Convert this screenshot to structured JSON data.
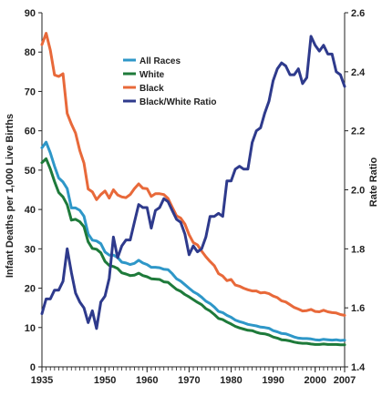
{
  "chart_data": {
    "type": "line",
    "title": "",
    "xlabel": "",
    "ylabel": "Infant Deaths per 1,000 Live Births",
    "y2label": "Rate Ratio",
    "xlim": [
      1935,
      2007
    ],
    "ylim": [
      0,
      90
    ],
    "y2lim": [
      1.4,
      2.6
    ],
    "x_ticks": [
      1935,
      1950,
      1960,
      1970,
      1980,
      1990,
      2000,
      2007
    ],
    "y_ticks": [
      0,
      10,
      20,
      30,
      40,
      50,
      60,
      70,
      80,
      90
    ],
    "y2_ticks": [
      1.4,
      1.6,
      1.8,
      2.0,
      2.2,
      2.4,
      2.6
    ],
    "grid": false,
    "legend_position": "top-center",
    "series": [
      {
        "name": "All Races",
        "axis": "left",
        "color": "#2e97c8",
        "x": [
          1935,
          1936,
          1937,
          1938,
          1939,
          1940,
          1941,
          1942,
          1943,
          1944,
          1945,
          1946,
          1947,
          1948,
          1949,
          1950,
          1951,
          1952,
          1953,
          1954,
          1955,
          1956,
          1957,
          1958,
          1959,
          1960,
          1961,
          1962,
          1963,
          1964,
          1965,
          1966,
          1967,
          1968,
          1969,
          1970,
          1971,
          1972,
          1973,
          1974,
          1975,
          1976,
          1977,
          1978,
          1979,
          1980,
          1981,
          1982,
          1983,
          1984,
          1985,
          1986,
          1987,
          1988,
          1989,
          1990,
          1991,
          1992,
          1993,
          1994,
          1995,
          1996,
          1997,
          1998,
          1999,
          2000,
          2001,
          2002,
          2003,
          2004,
          2005,
          2006,
          2007
        ],
        "values": [
          55.7,
          57.1,
          54.4,
          51.0,
          48.0,
          47.0,
          45.3,
          40.4,
          40.4,
          39.8,
          38.3,
          33.8,
          32.2,
          32.0,
          31.3,
          29.2,
          28.4,
          28.4,
          27.8,
          26.6,
          26.4,
          26.0,
          26.3,
          27.1,
          26.4,
          26.0,
          25.3,
          25.3,
          25.2,
          24.8,
          24.7,
          23.7,
          22.4,
          21.8,
          20.9,
          20.0,
          19.1,
          18.5,
          17.7,
          16.7,
          16.1,
          15.2,
          14.1,
          13.8,
          13.1,
          12.6,
          11.9,
          11.5,
          11.2,
          10.8,
          10.6,
          10.4,
          10.1,
          10.0,
          9.8,
          9.2,
          8.9,
          8.5,
          8.4,
          8.0,
          7.6,
          7.3,
          7.2,
          7.2,
          7.1,
          6.9,
          6.8,
          7.0,
          6.9,
          6.8,
          6.9,
          6.7,
          6.8
        ]
      },
      {
        "name": "White",
        "axis": "left",
        "color": "#1e7a3a",
        "x": [
          1935,
          1936,
          1937,
          1938,
          1939,
          1940,
          1941,
          1942,
          1943,
          1944,
          1945,
          1946,
          1947,
          1948,
          1949,
          1950,
          1951,
          1952,
          1953,
          1954,
          1955,
          1956,
          1957,
          1958,
          1959,
          1960,
          1961,
          1962,
          1963,
          1964,
          1965,
          1966,
          1967,
          1968,
          1969,
          1970,
          1971,
          1972,
          1973,
          1974,
          1975,
          1976,
          1977,
          1978,
          1979,
          1980,
          1981,
          1982,
          1983,
          1984,
          1985,
          1986,
          1987,
          1988,
          1989,
          1990,
          1991,
          1992,
          1993,
          1994,
          1995,
          1996,
          1997,
          1998,
          1999,
          2000,
          2001,
          2002,
          2003,
          2004,
          2005,
          2006,
          2007
        ],
        "values": [
          51.9,
          52.9,
          50.3,
          47.1,
          44.3,
          43.2,
          41.2,
          37.3,
          37.5,
          36.9,
          35.6,
          31.8,
          30.1,
          29.9,
          29.0,
          26.8,
          25.8,
          25.5,
          25.0,
          23.9,
          23.6,
          23.2,
          23.3,
          23.8,
          23.2,
          22.9,
          22.4,
          22.3,
          22.2,
          21.6,
          21.5,
          20.6,
          19.7,
          19.2,
          18.4,
          17.8,
          17.1,
          16.4,
          15.8,
          14.8,
          14.2,
          13.3,
          12.3,
          12.0,
          11.4,
          10.9,
          10.3,
          9.9,
          9.6,
          9.3,
          9.2,
          8.8,
          8.5,
          8.4,
          8.1,
          7.6,
          7.3,
          6.9,
          6.8,
          6.6,
          6.3,
          6.1,
          6.0,
          6.0,
          5.8,
          5.7,
          5.7,
          5.8,
          5.7,
          5.7,
          5.7,
          5.6,
          5.6
        ]
      },
      {
        "name": "Black",
        "axis": "left",
        "color": "#e8693a",
        "x": [
          1935,
          1936,
          1937,
          1938,
          1939,
          1940,
          1941,
          1942,
          1943,
          1944,
          1945,
          1946,
          1947,
          1948,
          1949,
          1950,
          1951,
          1952,
          1953,
          1954,
          1955,
          1956,
          1957,
          1958,
          1959,
          1960,
          1961,
          1962,
          1963,
          1964,
          1965,
          1966,
          1967,
          1968,
          1969,
          1970,
          1971,
          1972,
          1973,
          1974,
          1975,
          1976,
          1977,
          1978,
          1979,
          1980,
          1981,
          1982,
          1983,
          1984,
          1985,
          1986,
          1987,
          1988,
          1989,
          1990,
          1991,
          1992,
          1993,
          1994,
          1995,
          1996,
          1997,
          1998,
          1999,
          2000,
          2001,
          2002,
          2003,
          2004,
          2005,
          2006,
          2007
        ],
        "values": [
          81.9,
          84.8,
          80.5,
          74.2,
          73.8,
          74.5,
          64.4,
          61.7,
          59.4,
          55.0,
          51.8,
          45.2,
          44.5,
          42.5,
          43.8,
          44.7,
          42.9,
          45.0,
          43.7,
          43.2,
          43.0,
          43.8,
          45.3,
          46.5,
          45.4,
          45.3,
          43.3,
          44.0,
          44.0,
          43.8,
          42.8,
          40.6,
          38.4,
          37.8,
          36.3,
          33.6,
          31.6,
          31.0,
          29.4,
          28.0,
          26.8,
          25.7,
          23.7,
          23.1,
          21.9,
          22.2,
          20.8,
          20.5,
          20.0,
          19.6,
          19.3,
          19.3,
          18.8,
          18.9,
          18.6,
          18.0,
          17.6,
          16.8,
          16.5,
          15.8,
          15.1,
          14.7,
          14.2,
          14.3,
          14.6,
          14.1,
          14.0,
          14.4,
          14.0,
          13.8,
          13.7,
          13.3,
          13.1
        ]
      },
      {
        "name": "Black/White Ratio",
        "axis": "right",
        "color": "#2e3a8c",
        "x": [
          1935,
          1936,
          1937,
          1938,
          1939,
          1940,
          1941,
          1942,
          1943,
          1944,
          1945,
          1946,
          1947,
          1948,
          1949,
          1950,
          1951,
          1952,
          1953,
          1954,
          1955,
          1956,
          1957,
          1958,
          1959,
          1960,
          1961,
          1962,
          1963,
          1964,
          1965,
          1966,
          1967,
          1968,
          1969,
          1970,
          1971,
          1972,
          1973,
          1974,
          1975,
          1976,
          1977,
          1978,
          1979,
          1980,
          1981,
          1982,
          1983,
          1984,
          1985,
          1986,
          1987,
          1988,
          1989,
          1990,
          1991,
          1992,
          1993,
          1994,
          1995,
          1996,
          1997,
          1998,
          1999,
          2000,
          2001,
          2002,
          2003,
          2004,
          2005,
          2006,
          2007
        ],
        "values": [
          1.58,
          1.63,
          1.63,
          1.66,
          1.66,
          1.69,
          1.8,
          1.72,
          1.65,
          1.62,
          1.6,
          1.55,
          1.59,
          1.53,
          1.62,
          1.64,
          1.7,
          1.84,
          1.77,
          1.81,
          1.83,
          1.83,
          1.89,
          1.95,
          1.94,
          1.94,
          1.87,
          1.93,
          1.94,
          1.97,
          1.96,
          1.93,
          1.9,
          1.89,
          1.85,
          1.78,
          1.81,
          1.79,
          1.8,
          1.84,
          1.91,
          1.91,
          1.92,
          1.91,
          2.03,
          2.03,
          2.07,
          2.08,
          2.07,
          2.07,
          2.16,
          2.2,
          2.21,
          2.26,
          2.3,
          2.37,
          2.41,
          2.43,
          2.42,
          2.39,
          2.39,
          2.41,
          2.36,
          2.38,
          2.52,
          2.49,
          2.47,
          2.49,
          2.46,
          2.46,
          2.4,
          2.39,
          2.35
        ]
      }
    ]
  }
}
